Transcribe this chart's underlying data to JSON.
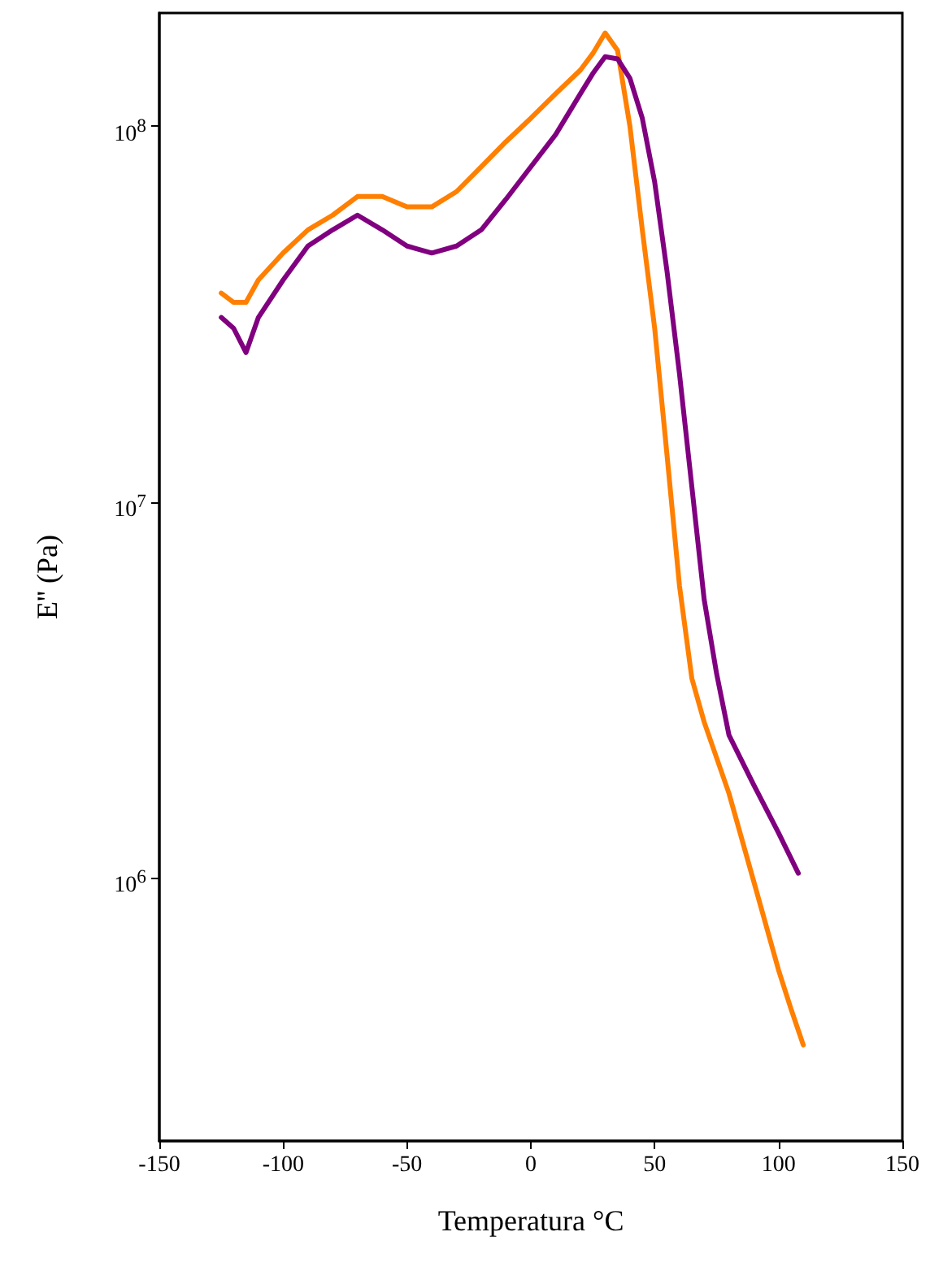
{
  "chart_data": {
    "type": "line",
    "xlabel": "Temperatura °C",
    "ylabel": "E'' (Pa)",
    "log": "y",
    "grid": false,
    "marker": "none",
    "line_style": "solid",
    "xlim": [
      -150,
      150
    ],
    "xticks": [
      -150,
      -100,
      -50,
      0,
      50,
      100,
      150
    ],
    "ylim": [
      200000,
      200000000
    ],
    "yticks": [
      {
        "value": 1000000,
        "label": "10$^{6}$"
      },
      {
        "value": 10000000,
        "label": "10$^{7}$"
      },
      {
        "value": 100000000,
        "label": "10$^{8}$"
      }
    ],
    "series": [
      {
        "color": "#ff7f00",
        "x": [
          -125,
          -120,
          -115,
          -110,
          -100,
          -90,
          -80,
          -70,
          -60,
          -50,
          -40,
          -30,
          -20,
          -10,
          0,
          10,
          20,
          25,
          30,
          35,
          40,
          45,
          50,
          55,
          60,
          65,
          70,
          80,
          90,
          100,
          105,
          110
        ],
        "values": [
          36000000,
          34000000,
          34000000,
          39000000,
          46000000,
          53000000,
          58000000,
          65000000,
          65000000,
          61000000,
          61000000,
          67000000,
          78000000,
          91000000,
          105000000,
          122000000,
          141000000,
          156000000,
          177000000,
          159000000,
          100000000,
          53000000,
          29000000,
          13300000,
          6000000,
          3400000,
          2600000,
          1680000,
          980000,
          570000,
          450000,
          360000
        ]
      },
      {
        "color": "#800080",
        "x": [
          -125,
          -120,
          -115,
          -110,
          -100,
          -90,
          -80,
          -70,
          -60,
          -50,
          -40,
          -30,
          -20,
          -10,
          0,
          10,
          20,
          25,
          30,
          35,
          40,
          45,
          50,
          55,
          60,
          65,
          70,
          75,
          80,
          90,
          100,
          108
        ],
        "values": [
          31000000,
          29000000,
          25000000,
          31000000,
          39000000,
          48000000,
          53000000,
          58000000,
          53000000,
          48000000,
          46000000,
          48000000,
          53000000,
          64000000,
          78000000,
          95000000,
          122000000,
          138000000,
          153000000,
          151000000,
          134000000,
          105000000,
          71000000,
          41000000,
          22000000,
          11000000,
          5500000,
          3500000,
          2400000,
          1770000,
          1320000,
          1030000
        ]
      }
    ]
  }
}
